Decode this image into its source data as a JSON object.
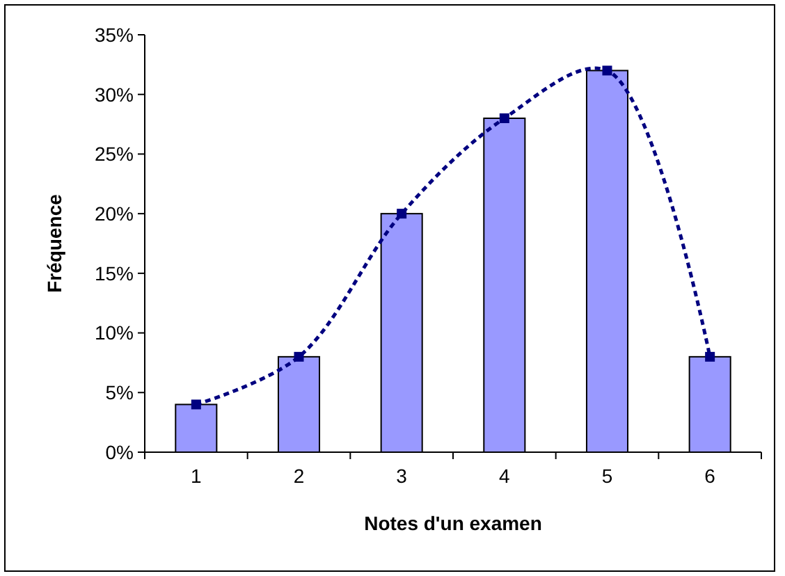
{
  "chart_data": {
    "type": "bar",
    "xlabel": "Notes d'un examen",
    "ylabel": "Fréquence",
    "categories": [
      "1",
      "2",
      "3",
      "4",
      "5",
      "6"
    ],
    "series": [
      {
        "color": "#9999ff",
        "values": [
          4,
          8,
          20,
          28,
          32,
          8
        ]
      },
      {
        "type": "line",
        "color": "#000080",
        "values": [
          4,
          8,
          20,
          28,
          32,
          8
        ],
        "marker": "square",
        "line_style": "dashed"
      }
    ],
    "ylim": [
      0,
      35
    ],
    "yticks": [
      {
        "value": 0,
        "label": "0%"
      },
      {
        "value": 5,
        "label": "5%"
      },
      {
        "value": 10,
        "label": "10%"
      },
      {
        "value": 15,
        "label": "15%"
      },
      {
        "value": 20,
        "label": "20%"
      },
      {
        "value": 25,
        "label": "25%"
      },
      {
        "value": 30,
        "label": "30%"
      },
      {
        "value": 35,
        "label": "35%"
      }
    ],
    "grid": false
  }
}
